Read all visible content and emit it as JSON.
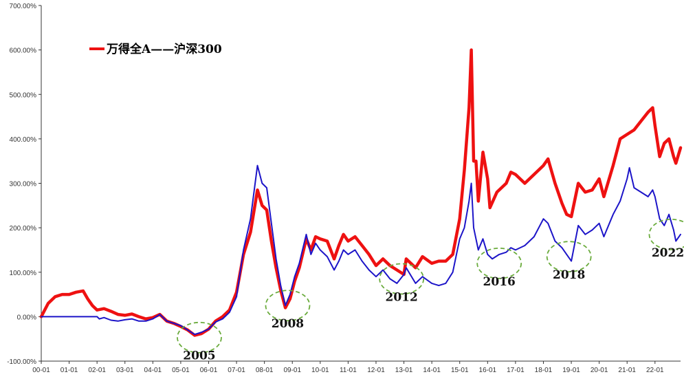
{
  "chart_data": {
    "type": "line",
    "title": "",
    "xlabel": "",
    "ylabel": "",
    "ylim": [
      -100,
      700
    ],
    "xlim": [
      "2000-01",
      "2022-12"
    ],
    "grid": false,
    "legend_placement": "top-left",
    "y_ticks": [
      "700.00%",
      "600.00%",
      "500.00%",
      "400.00%",
      "300.00%",
      "200.00%",
      "100.00%",
      "0.00%",
      "-100.00%"
    ],
    "y_tick_values": [
      700,
      600,
      500,
      400,
      300,
      200,
      100,
      0,
      -100
    ],
    "x_ticks": [
      "00-01",
      "01-01",
      "02-01",
      "03-01",
      "04-01",
      "05-01",
      "06-01",
      "07-01",
      "08-01",
      "09-01",
      "10-01",
      "11-01",
      "12-01",
      "13-01",
      "14-01",
      "15-01",
      "16-01",
      "17-01",
      "18-01",
      "19-01",
      "20-01",
      "21-01",
      "22-01"
    ],
    "legend_label": "万得全A——沪深300",
    "series": [
      {
        "name": "万得全A",
        "color": "#ee1111",
        "points": [
          [
            "2000-01",
            0
          ],
          [
            "2000-04",
            30
          ],
          [
            "2000-07",
            45
          ],
          [
            "2000-10",
            50
          ],
          [
            "2001-01",
            50
          ],
          [
            "2001-04",
            55
          ],
          [
            "2001-07",
            58
          ],
          [
            "2001-09",
            40
          ],
          [
            "2001-11",
            25
          ],
          [
            "2002-01",
            15
          ],
          [
            "2002-04",
            18
          ],
          [
            "2002-07",
            12
          ],
          [
            "2002-10",
            5
          ],
          [
            "2003-01",
            3
          ],
          [
            "2003-04",
            6
          ],
          [
            "2003-07",
            0
          ],
          [
            "2003-10",
            -5
          ],
          [
            "2004-01",
            -2
          ],
          [
            "2004-04",
            5
          ],
          [
            "2004-07",
            -10
          ],
          [
            "2004-10",
            -15
          ],
          [
            "2005-01",
            -22
          ],
          [
            "2005-04",
            -30
          ],
          [
            "2005-07",
            -42
          ],
          [
            "2005-10",
            -38
          ],
          [
            "2006-01",
            -28
          ],
          [
            "2006-04",
            -10
          ],
          [
            "2006-07",
            0
          ],
          [
            "2006-10",
            15
          ],
          [
            "2007-01",
            55
          ],
          [
            "2007-04",
            140
          ],
          [
            "2007-07",
            190
          ],
          [
            "2007-10",
            285
          ],
          [
            "2007-12",
            250
          ],
          [
            "2008-02",
            240
          ],
          [
            "2008-04",
            170
          ],
          [
            "2008-06",
            110
          ],
          [
            "2008-08",
            60
          ],
          [
            "2008-10",
            20
          ],
          [
            "2008-12",
            40
          ],
          [
            "2009-02",
            80
          ],
          [
            "2009-04",
            110
          ],
          [
            "2009-07",
            175
          ],
          [
            "2009-09",
            150
          ],
          [
            "2009-11",
            180
          ],
          [
            "2010-01",
            175
          ],
          [
            "2010-04",
            170
          ],
          [
            "2010-07",
            130
          ],
          [
            "2010-09",
            160
          ],
          [
            "2010-11",
            185
          ],
          [
            "2011-01",
            170
          ],
          [
            "2011-04",
            180
          ],
          [
            "2011-07",
            160
          ],
          [
            "2011-10",
            140
          ],
          [
            "2012-01",
            115
          ],
          [
            "2012-04",
            130
          ],
          [
            "2012-07",
            115
          ],
          [
            "2012-10",
            105
          ],
          [
            "2013-01",
            95
          ],
          [
            "2013-02",
            130
          ],
          [
            "2013-06",
            110
          ],
          [
            "2013-09",
            135
          ],
          [
            "2014-01",
            120
          ],
          [
            "2014-04",
            125
          ],
          [
            "2014-07",
            125
          ],
          [
            "2014-10",
            140
          ],
          [
            "2015-01",
            220
          ],
          [
            "2015-03",
            330
          ],
          [
            "2015-05",
            470
          ],
          [
            "2015-06",
            600
          ],
          [
            "2015-07",
            350
          ],
          [
            "2015-08",
            350
          ],
          [
            "2015-09",
            260
          ],
          [
            "2015-11",
            370
          ],
          [
            "2016-01",
            310
          ],
          [
            "2016-02",
            245
          ],
          [
            "2016-05",
            280
          ],
          [
            "2016-09",
            300
          ],
          [
            "2016-11",
            325
          ],
          [
            "2017-01",
            320
          ],
          [
            "2017-05",
            300
          ],
          [
            "2017-09",
            320
          ],
          [
            "2018-01",
            340
          ],
          [
            "2018-03",
            355
          ],
          [
            "2018-06",
            300
          ],
          [
            "2018-09",
            255
          ],
          [
            "2018-11",
            230
          ],
          [
            "2019-01",
            225
          ],
          [
            "2019-04",
            300
          ],
          [
            "2019-07",
            280
          ],
          [
            "2019-10",
            285
          ],
          [
            "2020-01",
            310
          ],
          [
            "2020-03",
            270
          ],
          [
            "2020-07",
            340
          ],
          [
            "2020-10",
            400
          ],
          [
            "2021-01",
            410
          ],
          [
            "2021-04",
            420
          ],
          [
            "2021-07",
            440
          ],
          [
            "2021-10",
            460
          ],
          [
            "2021-12",
            470
          ],
          [
            "2022-01",
            430
          ],
          [
            "2022-03",
            360
          ],
          [
            "2022-05",
            390
          ],
          [
            "2022-07",
            400
          ],
          [
            "2022-09",
            360
          ],
          [
            "2022-10",
            345
          ],
          [
            "2022-12",
            380
          ]
        ]
      },
      {
        "name": "沪深300",
        "color": "#1c14c8",
        "points": [
          [
            "2000-01",
            0
          ],
          [
            "2002-01",
            0
          ],
          [
            "2002-02",
            -5
          ],
          [
            "2002-04",
            -2
          ],
          [
            "2002-07",
            -8
          ],
          [
            "2002-10",
            -10
          ],
          [
            "2003-01",
            -7
          ],
          [
            "2003-04",
            -5
          ],
          [
            "2003-07",
            -10
          ],
          [
            "2003-10",
            -10
          ],
          [
            "2004-01",
            -5
          ],
          [
            "2004-04",
            5
          ],
          [
            "2004-07",
            -10
          ],
          [
            "2004-10",
            -15
          ],
          [
            "2005-01",
            -20
          ],
          [
            "2005-04",
            -30
          ],
          [
            "2005-07",
            -40
          ],
          [
            "2005-10",
            -35
          ],
          [
            "2006-01",
            -28
          ],
          [
            "2006-04",
            -12
          ],
          [
            "2006-07",
            -5
          ],
          [
            "2006-10",
            10
          ],
          [
            "2007-01",
            45
          ],
          [
            "2007-04",
            150
          ],
          [
            "2007-07",
            220
          ],
          [
            "2007-10",
            340
          ],
          [
            "2007-12",
            300
          ],
          [
            "2008-02",
            290
          ],
          [
            "2008-04",
            210
          ],
          [
            "2008-06",
            130
          ],
          [
            "2008-08",
            70
          ],
          [
            "2008-10",
            25
          ],
          [
            "2008-12",
            50
          ],
          [
            "2009-02",
            90
          ],
          [
            "2009-04",
            120
          ],
          [
            "2009-07",
            185
          ],
          [
            "2009-09",
            140
          ],
          [
            "2009-11",
            165
          ],
          [
            "2010-01",
            150
          ],
          [
            "2010-04",
            135
          ],
          [
            "2010-07",
            105
          ],
          [
            "2010-09",
            125
          ],
          [
            "2010-11",
            150
          ],
          [
            "2011-01",
            140
          ],
          [
            "2011-04",
            150
          ],
          [
            "2011-07",
            125
          ],
          [
            "2011-10",
            105
          ],
          [
            "2012-01",
            90
          ],
          [
            "2012-04",
            105
          ],
          [
            "2012-07",
            85
          ],
          [
            "2012-10",
            75
          ],
          [
            "2013-01",
            95
          ],
          [
            "2013-02",
            110
          ],
          [
            "2013-06",
            75
          ],
          [
            "2013-09",
            90
          ],
          [
            "2014-01",
            75
          ],
          [
            "2014-04",
            70
          ],
          [
            "2014-07",
            75
          ],
          [
            "2014-10",
            100
          ],
          [
            "2015-01",
            175
          ],
          [
            "2015-03",
            200
          ],
          [
            "2015-05",
            260
          ],
          [
            "2015-06",
            300
          ],
          [
            "2015-07",
            200
          ],
          [
            "2015-09",
            150
          ],
          [
            "2015-11",
            175
          ],
          [
            "2016-01",
            140
          ],
          [
            "2016-03",
            130
          ],
          [
            "2016-06",
            140
          ],
          [
            "2016-09",
            145
          ],
          [
            "2016-11",
            155
          ],
          [
            "2017-01",
            150
          ],
          [
            "2017-05",
            160
          ],
          [
            "2017-09",
            180
          ],
          [
            "2018-01",
            220
          ],
          [
            "2018-03",
            210
          ],
          [
            "2018-06",
            170
          ],
          [
            "2018-09",
            155
          ],
          [
            "2018-11",
            140
          ],
          [
            "2019-01",
            125
          ],
          [
            "2019-04",
            205
          ],
          [
            "2019-07",
            185
          ],
          [
            "2019-10",
            195
          ],
          [
            "2020-01",
            210
          ],
          [
            "2020-03",
            180
          ],
          [
            "2020-07",
            230
          ],
          [
            "2020-10",
            260
          ],
          [
            "2021-01",
            310
          ],
          [
            "2021-02",
            335
          ],
          [
            "2021-04",
            290
          ],
          [
            "2021-07",
            280
          ],
          [
            "2021-10",
            270
          ],
          [
            "2021-12",
            285
          ],
          [
            "2022-01",
            270
          ],
          [
            "2022-03",
            220
          ],
          [
            "2022-05",
            205
          ],
          [
            "2022-07",
            230
          ],
          [
            "2022-09",
            195
          ],
          [
            "2022-10",
            170
          ],
          [
            "2022-12",
            185
          ]
        ]
      }
    ],
    "annotations": [
      {
        "label": "2005",
        "x": "2005-09",
        "y": -47
      },
      {
        "label": "2008",
        "x": "2008-11",
        "y": 25
      },
      {
        "label": "2012",
        "x": "2012-12",
        "y": 85
      },
      {
        "label": "2016",
        "x": "2016-06",
        "y": 120
      },
      {
        "label": "2018",
        "x": "2018-12",
        "y": 135
      },
      {
        "label": "2022?",
        "x": "2022-08",
        "y": 185
      }
    ]
  }
}
